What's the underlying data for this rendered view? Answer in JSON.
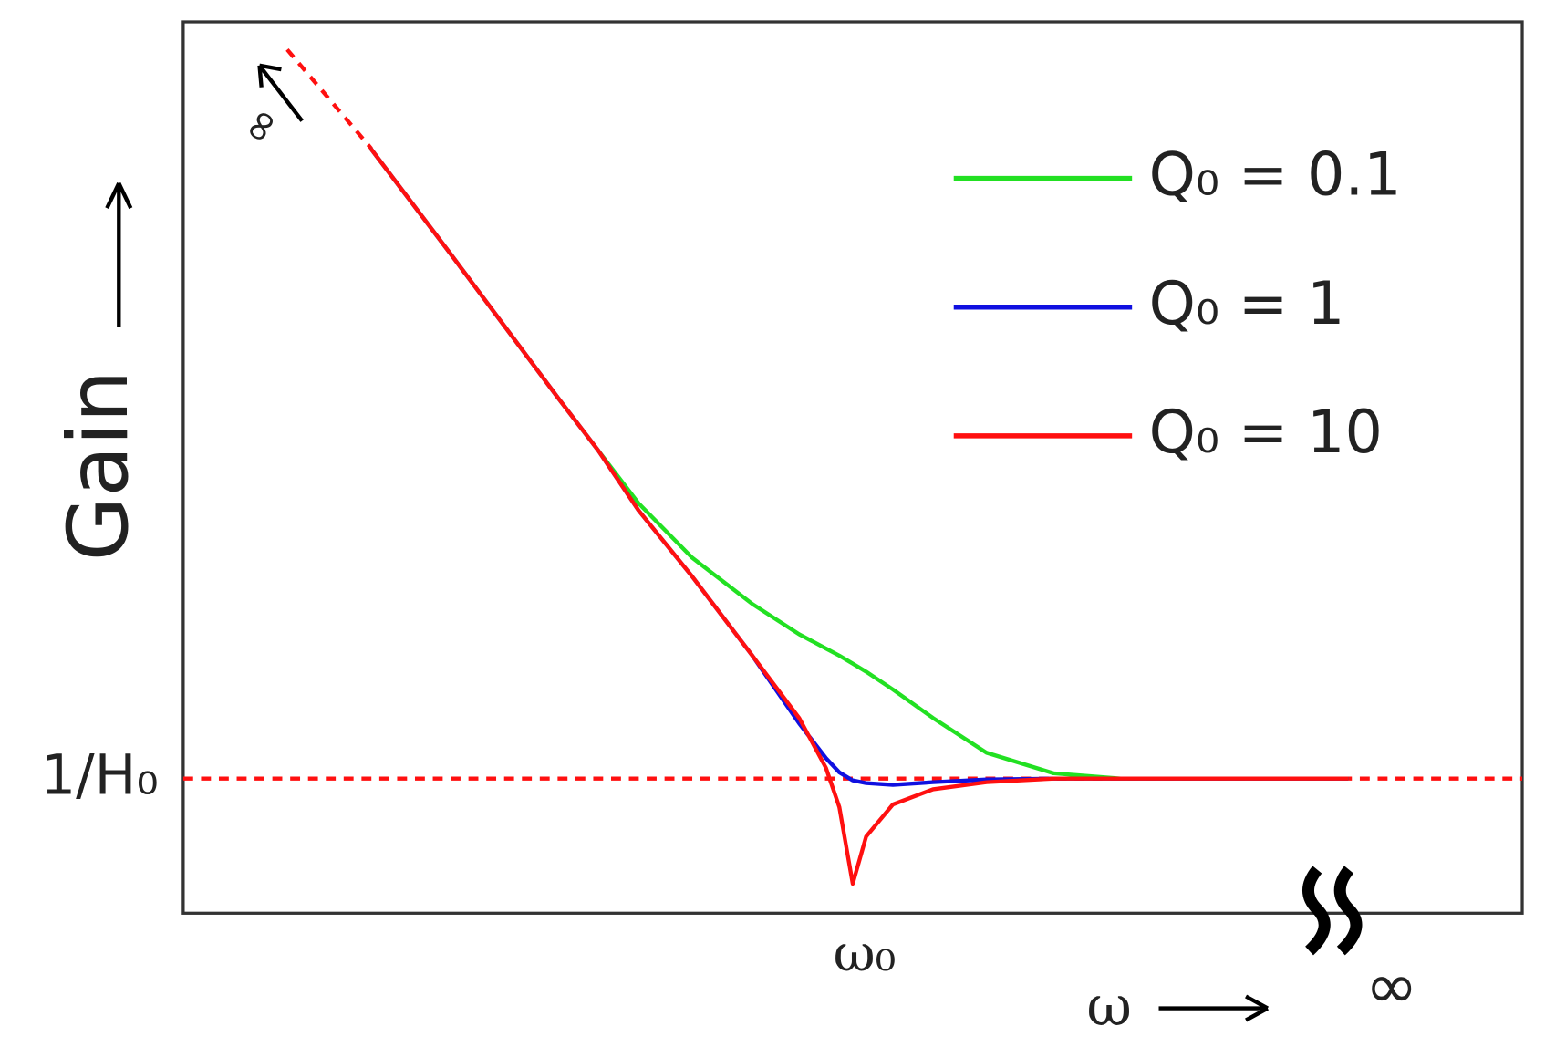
{
  "chart_data": {
    "type": "line",
    "y_label": "Gain",
    "x_label": "ω",
    "x_end_label": "∞",
    "y_start_label": "∞",
    "x": [
      14,
      20,
      28,
      31,
      34,
      38,
      42.5,
      46,
      48,
      49,
      50,
      51,
      53,
      56,
      60,
      65,
      70,
      87
    ],
    "series": [
      {
        "name": "Q₀ = 0.1",
        "color": "#22e022",
        "values": [
          85.8,
          73.9,
          57.8,
          51.9,
          46.0,
          39.9,
          34.7,
          31.3,
          29.7,
          28.9,
          28.0,
          27.1,
          25.1,
          21.9,
          18.0,
          15.7,
          15.1,
          15.1
        ]
      },
      {
        "name": "Q₀ = 1",
        "color": "#1010e0",
        "values": [
          85.8,
          73.9,
          57.8,
          51.9,
          45.2,
          37.8,
          28.9,
          21.3,
          17.4,
          15.8,
          14.9,
          14.6,
          14.4,
          14.7,
          15.0,
          15.1,
          15.1,
          15.1
        ]
      },
      {
        "name": "Q₀ = 10",
        "color": "#ff1010",
        "values": [
          85.8,
          73.9,
          57.8,
          51.9,
          45.2,
          37.8,
          28.9,
          21.9,
          16.3,
          11.9,
          3.3,
          8.6,
          12.2,
          13.9,
          14.7,
          15.1,
          15.1,
          15.1
        ]
      }
    ],
    "xlim": [
      0,
      100
    ],
    "ylim": [
      0,
      100
    ],
    "xticks": [
      {
        "value": 50,
        "label": "ω₀"
      }
    ],
    "yticks": [
      {
        "value": 15.1,
        "label": "1/H₀"
      }
    ]
  }
}
